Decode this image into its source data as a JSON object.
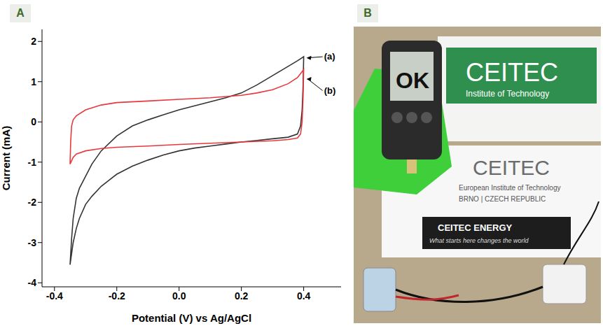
{
  "chart_data": {
    "type": "line",
    "panel_label": "A",
    "x_label": "Potential (V) vs Ag/AgCl",
    "y_label": "Current (mA)",
    "xlim": [
      -0.44,
      0.52
    ],
    "xticks": [
      -0.4,
      -0.2,
      {
        "value": 0,
        "label": "0.0"
      },
      0.2,
      0.4
    ],
    "ylim": [
      -4.1,
      2.3
    ],
    "yticks": [
      -4,
      -3,
      -2,
      -1,
      0,
      1,
      2
    ],
    "grid": false,
    "series": [
      {
        "name": "(a)",
        "color": "#333333",
        "line_style": "solid",
        "x": [
          -0.35,
          -0.345,
          -0.34,
          -0.33,
          -0.32,
          -0.3,
          -0.28,
          -0.25,
          -0.2,
          -0.15,
          -0.1,
          -0.05,
          0,
          0.05,
          0.1,
          0.15,
          0.2,
          0.25,
          0.3,
          0.35,
          0.38,
          0.4,
          0.398,
          0.395,
          0.39,
          0.38,
          0.35,
          0.3,
          0.25,
          0.2,
          0.15,
          0.1,
          0.05,
          0,
          -0.05,
          -0.1,
          -0.15,
          -0.2,
          -0.25,
          -0.28,
          -0.3,
          -0.32,
          -0.33,
          -0.34,
          -0.35
        ],
        "values": [
          -3.55,
          -2.9,
          -2.4,
          -1.9,
          -1.65,
          -1.35,
          -1.05,
          -0.72,
          -0.35,
          -0.1,
          0.05,
          0.18,
          0.3,
          0.4,
          0.5,
          0.6,
          0.72,
          0.92,
          1.15,
          1.38,
          1.52,
          1.62,
          0.9,
          0.3,
          -0.1,
          -0.3,
          -0.38,
          -0.42,
          -0.46,
          -0.5,
          -0.55,
          -0.6,
          -0.65,
          -0.72,
          -0.82,
          -0.95,
          -1.1,
          -1.3,
          -1.6,
          -1.85,
          -2.05,
          -2.4,
          -2.65,
          -3.0,
          -3.55
        ]
      },
      {
        "name": "(b)",
        "color": "#e8383d",
        "line_style": "solid",
        "x": [
          -0.35,
          -0.348,
          -0.345,
          -0.34,
          -0.33,
          -0.3,
          -0.25,
          -0.2,
          -0.1,
          0,
          0.1,
          0.2,
          0.25,
          0.3,
          0.35,
          0.38,
          0.4,
          0.398,
          0.395,
          0.39,
          0.38,
          0.35,
          0.3,
          0.2,
          0.1,
          0,
          -0.1,
          -0.2,
          -0.25,
          -0.3,
          -0.33,
          -0.34,
          -0.35
        ],
        "values": [
          -1.05,
          -0.5,
          -0.1,
          0.05,
          0.15,
          0.3,
          0.42,
          0.48,
          0.52,
          0.56,
          0.6,
          0.66,
          0.72,
          0.8,
          0.95,
          1.1,
          1.3,
          0.6,
          0.0,
          -0.3,
          -0.4,
          -0.44,
          -0.47,
          -0.5,
          -0.53,
          -0.56,
          -0.6,
          -0.63,
          -0.66,
          -0.72,
          -0.8,
          -0.88,
          -1.05
        ]
      }
    ]
  },
  "photo": {
    "panel_label": "B",
    "sign_upper": {
      "title": "CEITEC",
      "subtitle": "Institute of Technology"
    },
    "meter_display": "OK",
    "sign_lower": {
      "title": "CEITEC",
      "subtitle": "European Institute of Technology",
      "place": "BRNO | CZECH REPUBLIC"
    },
    "badge": {
      "title": "CEITEC ENERGY",
      "slogan": "What starts here changes the world"
    }
  }
}
